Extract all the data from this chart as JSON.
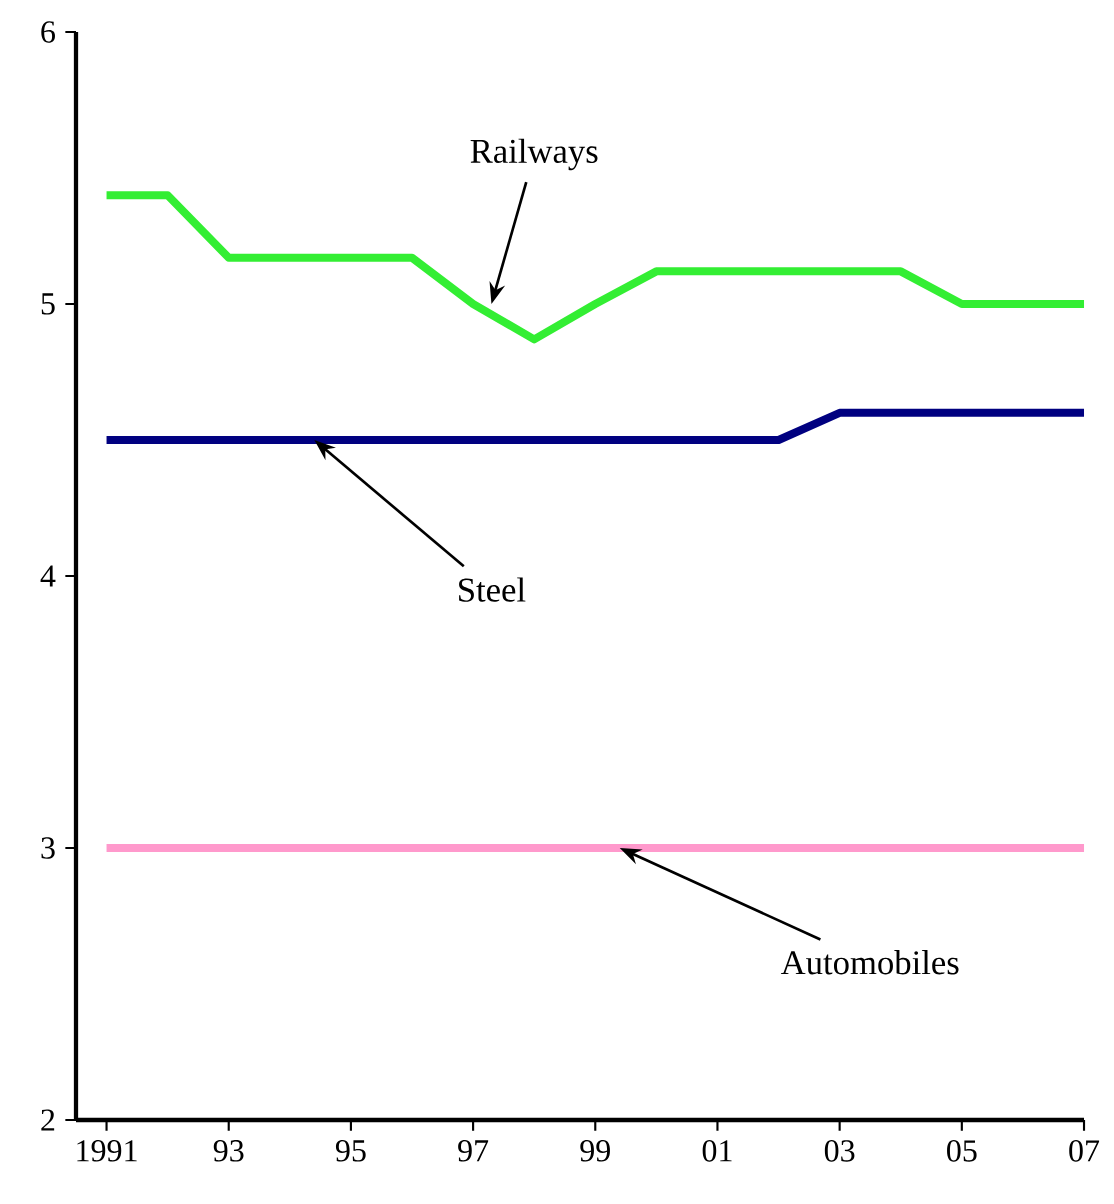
{
  "chart_data": {
    "type": "line",
    "x": [
      1991,
      1992,
      1993,
      1994,
      1995,
      1996,
      1997,
      1998,
      1999,
      2000,
      2001,
      2002,
      2003,
      2004,
      2005,
      2006,
      2007
    ],
    "series": [
      {
        "color": "#33ee33",
        "values": [
          5.4,
          5.4,
          5.17,
          5.17,
          5.17,
          5.17,
          5.0,
          4.87,
          5.0,
          5.12,
          5.12,
          5.12,
          5.12,
          5.12,
          5.0,
          5.0,
          5.0
        ]
      },
      {
        "color": "#000080",
        "values": [
          4.5,
          4.5,
          4.5,
          4.5,
          4.5,
          4.5,
          4.5,
          4.5,
          4.5,
          4.5,
          4.5,
          4.5,
          4.6,
          4.6,
          4.6,
          4.6,
          4.6
        ]
      },
      {
        "color": "#ff99cc",
        "values": [
          3.0,
          3.0,
          3.0,
          3.0,
          3.0,
          3.0,
          3.0,
          3.0,
          3.0,
          3.0,
          3.0,
          3.0,
          3.0,
          3.0,
          3.0,
          3.0,
          3.0
        ]
      }
    ],
    "annotations": [
      {
        "text": "Railways",
        "x": 1997.3,
        "y": 5.0
      },
      {
        "text": "Steel",
        "x": 1994.4,
        "y": 4.5
      },
      {
        "text": "Automobiles",
        "x": 1999.4,
        "y": 3.0
      }
    ],
    "xlim": [
      1990.5,
      2007
    ],
    "ylim": [
      2,
      6
    ],
    "xticks": [
      1991,
      {
        "value": 1993,
        "label": "93"
      },
      {
        "value": 1995,
        "label": "95"
      },
      {
        "value": 1997,
        "label": "97"
      },
      {
        "value": 1999,
        "label": "99"
      },
      {
        "value": 2001,
        "label": "01"
      },
      {
        "value": 2003,
        "label": "03"
      },
      {
        "value": 2005,
        "label": "05"
      },
      {
        "value": 2007,
        "label": "07"
      }
    ],
    "yticks": [
      2,
      3,
      4,
      5,
      6
    ],
    "grid": false,
    "marker": "none",
    "line_style": "solid"
  }
}
